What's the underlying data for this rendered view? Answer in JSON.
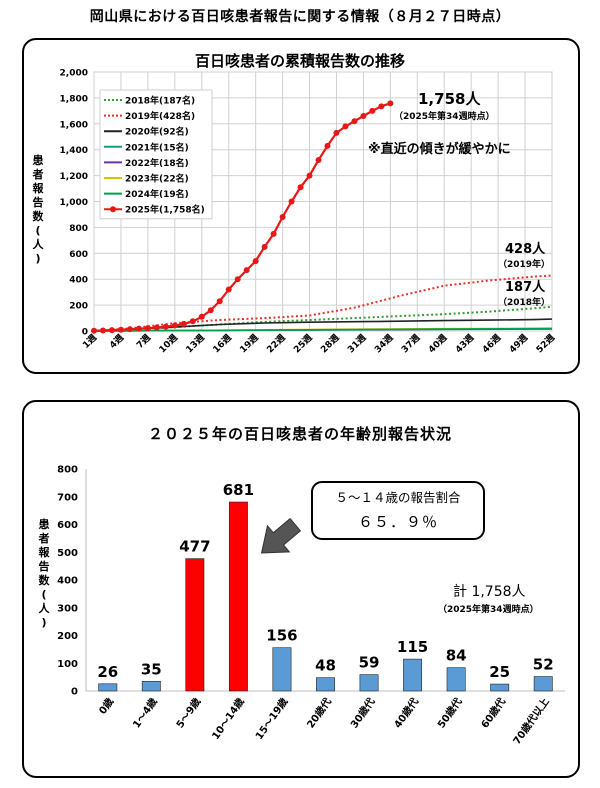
{
  "page": {
    "title": "岡山県における百日咳患者報告に関する情報（８月２７日時点）"
  },
  "chart_data": [
    {
      "type": "line",
      "title": "百日咳患者の累積報告数の推移",
      "ylabel": "患者報告数(人)",
      "ylim": [
        0,
        2000
      ],
      "yticks": [
        0,
        200,
        400,
        600,
        800,
        1000,
        1200,
        1400,
        1600,
        1800,
        2000
      ],
      "ytick_labels": [
        "0",
        "200",
        "400",
        "600",
        "800",
        "1,000",
        "1,200",
        "1,400",
        "1,600",
        "1,800",
        "2,000"
      ],
      "xlim": [
        1,
        52
      ],
      "xticks": [
        1,
        4,
        7,
        10,
        13,
        16,
        19,
        22,
        25,
        28,
        31,
        34,
        37,
        40,
        43,
        46,
        49,
        52
      ],
      "xtick_labels": [
        "1週",
        "4週",
        "7週",
        "10週",
        "13週",
        "16週",
        "19週",
        "22週",
        "25週",
        "28週",
        "31週",
        "34週",
        "37週",
        "40週",
        "43週",
        "46週",
        "49週",
        "52週"
      ],
      "grid": true,
      "legend": "top-left",
      "series": [
        {
          "name": "2018年(187名)",
          "color": "#339933",
          "dash": "dotted",
          "x": [
            1,
            5,
            10,
            15,
            20,
            25,
            30,
            35,
            40,
            45,
            50,
            52
          ],
          "y": [
            0,
            10,
            30,
            50,
            70,
            85,
            100,
            115,
            130,
            150,
            175,
            187
          ]
        },
        {
          "name": "2019年(428名)",
          "color": "#e8302a",
          "dash": "dotted",
          "x": [
            1,
            5,
            10,
            15,
            20,
            25,
            30,
            35,
            40,
            45,
            50,
            52
          ],
          "y": [
            0,
            20,
            60,
            85,
            100,
            120,
            180,
            270,
            350,
            390,
            420,
            428
          ]
        },
        {
          "name": "2020年(92名)",
          "color": "#222222",
          "dash": "solid",
          "x": [
            1,
            5,
            10,
            15,
            20,
            25,
            30,
            35,
            40,
            45,
            50,
            52
          ],
          "y": [
            0,
            12,
            30,
            50,
            62,
            68,
            72,
            76,
            80,
            84,
            88,
            92
          ]
        },
        {
          "name": "2021年(15名)",
          "color": "#1a9a8a",
          "dash": "solid",
          "x": [
            1,
            10,
            20,
            30,
            40,
            52
          ],
          "y": [
            0,
            3,
            6,
            9,
            12,
            15
          ]
        },
        {
          "name": "2022年(18名)",
          "color": "#7030a0",
          "dash": "solid",
          "x": [
            1,
            10,
            20,
            30,
            40,
            52
          ],
          "y": [
            0,
            3,
            7,
            10,
            14,
            18
          ]
        },
        {
          "name": "2023年(22名)",
          "color": "#e0c000",
          "dash": "solid",
          "x": [
            1,
            10,
            20,
            30,
            40,
            52
          ],
          "y": [
            0,
            4,
            9,
            14,
            18,
            22
          ]
        },
        {
          "name": "2024年(19名)",
          "color": "#00a050",
          "dash": "solid",
          "x": [
            1,
            10,
            20,
            30,
            40,
            52
          ],
          "y": [
            0,
            3,
            7,
            11,
            15,
            19
          ]
        },
        {
          "name": "2025年(1,758名)",
          "color": "#e81818",
          "dash": "solid",
          "markers": true,
          "x": [
            1,
            2,
            3,
            4,
            5,
            6,
            7,
            8,
            9,
            10,
            11,
            12,
            13,
            14,
            15,
            16,
            17,
            18,
            19,
            20,
            21,
            22,
            23,
            24,
            25,
            26,
            27,
            28,
            29,
            30,
            31,
            32,
            33,
            34
          ],
          "y": [
            2,
            4,
            7,
            10,
            14,
            18,
            22,
            27,
            33,
            42,
            55,
            75,
            110,
            160,
            230,
            320,
            400,
            470,
            540,
            650,
            750,
            880,
            1000,
            1110,
            1200,
            1320,
            1430,
            1530,
            1580,
            1620,
            1660,
            1700,
            1735,
            1758
          ]
        }
      ],
      "annotations": {
        "total_2025": "1,758人",
        "total_2025_note": "（2025年第34週時点）",
        "slope_note": "※直近の傾きが緩やかに",
        "y2019_count": "428人",
        "y2019_year": "（2019年）",
        "y2018_count": "187人",
        "y2018_year": "（2018年）"
      }
    },
    {
      "type": "bar",
      "title": "２０２５年の百日咳患者の年齢別報告状況",
      "ylabel": "患者報告数(人)",
      "ylim": [
        0,
        800
      ],
      "yticks": [
        0,
        100,
        200,
        300,
        400,
        500,
        600,
        700,
        800
      ],
      "categories": [
        "0歳",
        "1～4歳",
        "5～9歳",
        "10～14歳",
        "15～19歳",
        "20歳代",
        "30歳代",
        "40歳代",
        "50歳代",
        "60歳代",
        "70歳代以上"
      ],
      "values": [
        26,
        35,
        477,
        681,
        156,
        48,
        59,
        115,
        84,
        25,
        52
      ],
      "colors": [
        "#5b9bd5",
        "#5b9bd5",
        "#ff0000",
        "#ff0000",
        "#5b9bd5",
        "#5b9bd5",
        "#5b9bd5",
        "#5b9bd5",
        "#5b9bd5",
        "#5b9bd5",
        "#5b9bd5"
      ],
      "annotations": {
        "ratio_line1": "５～１４歳の報告割合",
        "ratio_line2": "６５．９％",
        "total": "計 1,758人",
        "total_note": "（2025年第34週時点）"
      }
    }
  ]
}
